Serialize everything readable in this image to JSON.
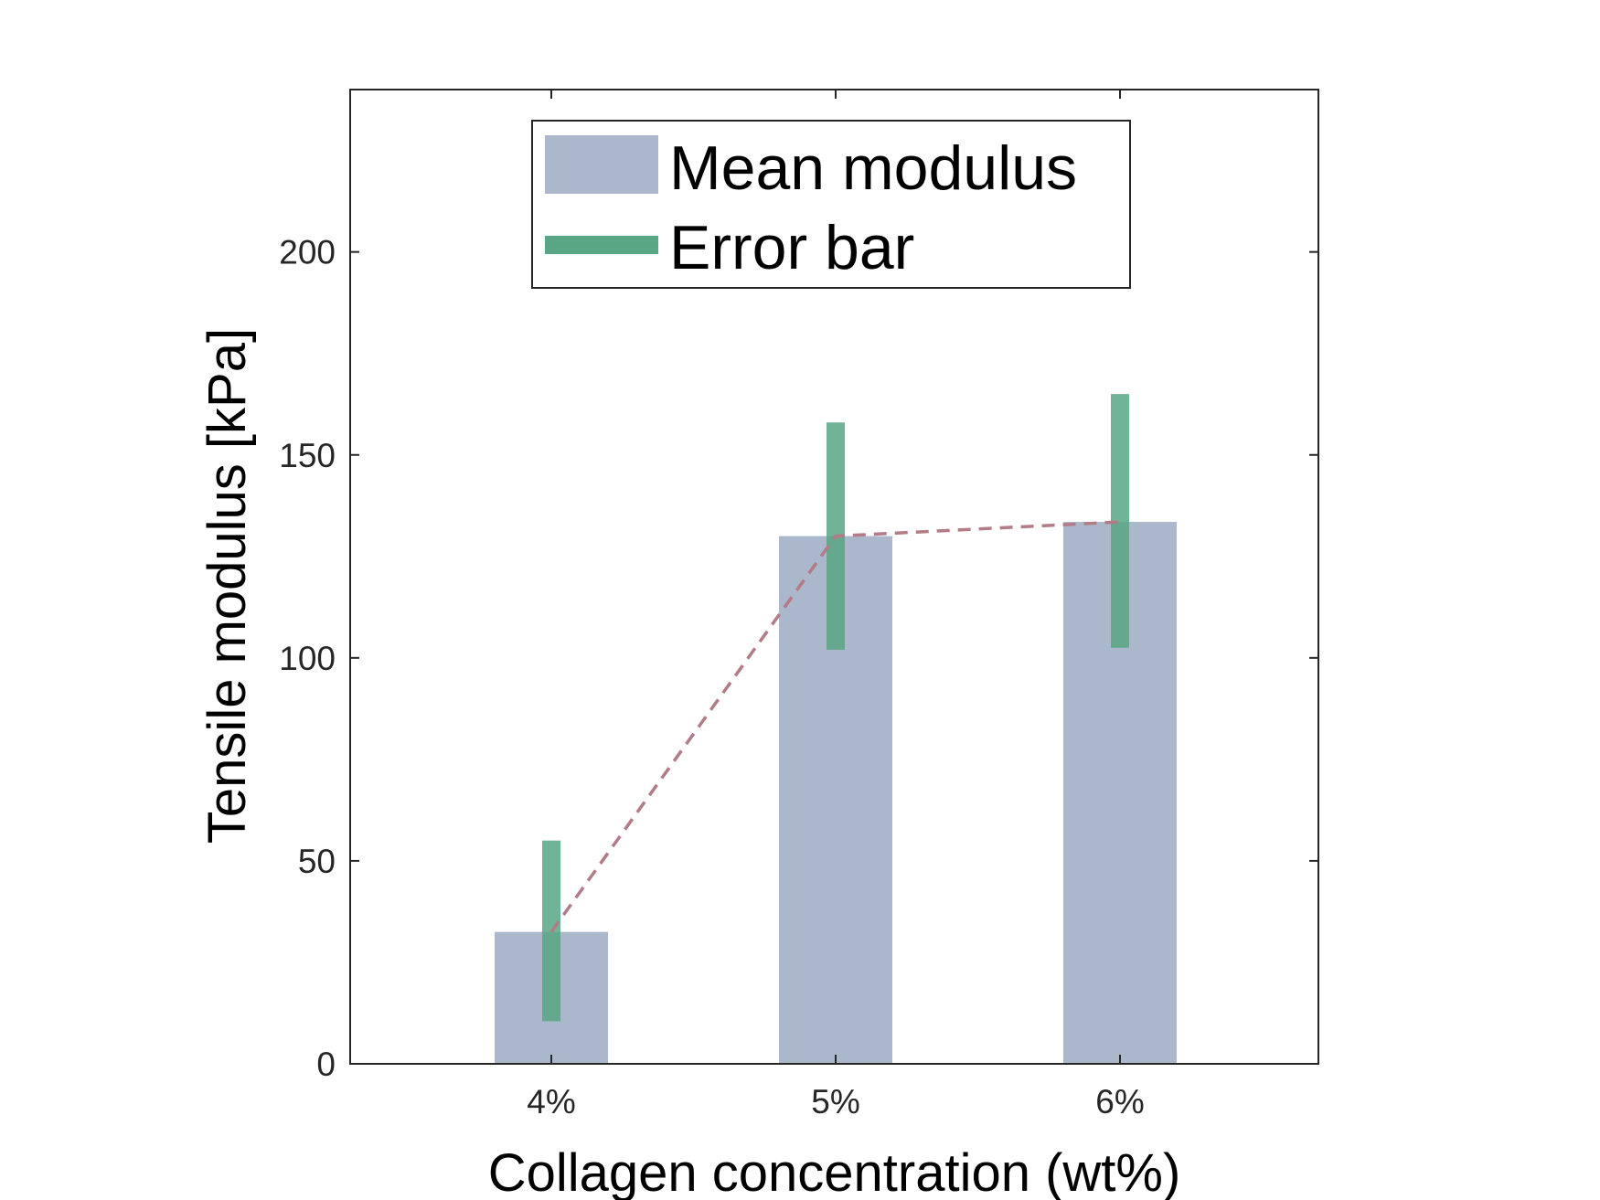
{
  "chart_data": {
    "type": "bar",
    "categories": [
      "4%",
      "5%",
      "6%"
    ],
    "xlabel": "Collagen concentration (wt%)",
    "ylabel": "Tensile modulus [kPa]",
    "ylim": [
      0,
      240
    ],
    "yticks": [
      0,
      50,
      100,
      150,
      200
    ],
    "grid": false,
    "legend_position": "top-center",
    "series": [
      {
        "name": "Mean modulus",
        "kind": "bar",
        "color": "#abb7cb",
        "values": [
          32.5,
          130,
          133.5
        ]
      },
      {
        "name": "Error bar",
        "kind": "errorbar",
        "color": "#58a684",
        "lower": [
          10.5,
          102,
          102.5
        ],
        "upper": [
          55,
          158,
          165
        ]
      },
      {
        "kind": "line",
        "style": "dashed",
        "color": "#b27b86",
        "values": [
          32.5,
          130,
          133.5
        ]
      }
    ]
  }
}
